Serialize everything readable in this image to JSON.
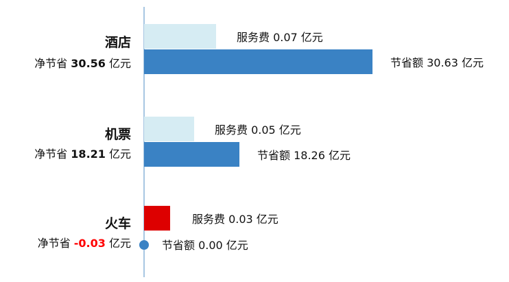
{
  "chart_data": {
    "type": "bar",
    "categories": [
      "酒店",
      "机票",
      "火车"
    ],
    "net_label": "净节省",
    "unit": "亿元",
    "fee_label": "服务费",
    "saving_label": "节省额",
    "rows": [
      {
        "category": "酒店",
        "net": "30.56",
        "fee": "0.07",
        "saving": "30.63",
        "negative": false
      },
      {
        "category": "机票",
        "net": "18.21",
        "fee": "0.05",
        "saving": "18.26",
        "negative": false
      },
      {
        "category": "火车",
        "net": "-0.03",
        "fee": "0.03",
        "saving": "0.00",
        "negative": true
      }
    ],
    "series": [
      {
        "name": "服务费",
        "values": [
          0.07,
          0.05,
          0.03
        ]
      },
      {
        "name": "节省额",
        "values": [
          30.63,
          18.26,
          0.0
        ]
      }
    ],
    "colors": {
      "fee": "#d6ecf3",
      "fee_negative": "#dd0000",
      "saving": "#3a82c4",
      "axis": "#8ab4d8",
      "negative_text": "#ff0000"
    }
  }
}
